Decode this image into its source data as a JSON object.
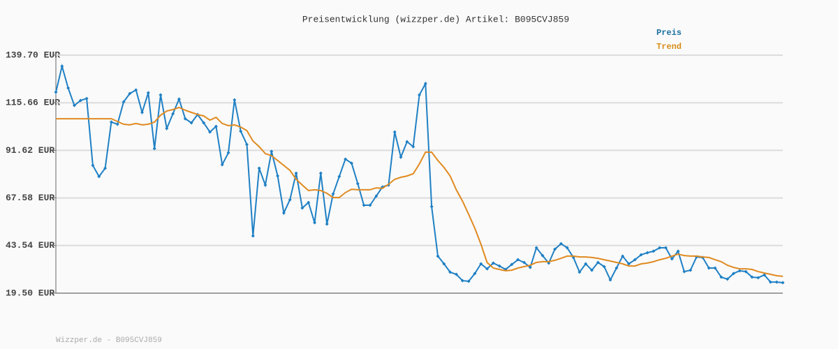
{
  "chart_data": {
    "type": "line",
    "title": "Preisentwicklung (wizzper.de) Artikel: B095CVJ859",
    "footer": "Wizzper.de - B095CVJ859",
    "ylim": [
      19.5,
      139.7
    ],
    "yticks": [
      {
        "value": 19.5,
        "label": "19.50 EUR"
      },
      {
        "value": 43.54,
        "label": "43.54 EUR"
      },
      {
        "value": 67.58,
        "label": "67.58 EUR"
      },
      {
        "value": 91.62,
        "label": "91.62 EUR"
      },
      {
        "value": 115.66,
        "label": "115.66 EUR"
      },
      {
        "value": 139.7,
        "label": "139.70 EUR"
      }
    ],
    "grid": true,
    "legend": "top-right",
    "series": [
      {
        "name": "Preis",
        "color": "#1f80c4",
        "legend_color": "#1a6e9e",
        "markers": true,
        "values": [
          121.0,
          134.1,
          123.1,
          114.3,
          116.8,
          117.8,
          84.0,
          78.4,
          82.6,
          105.9,
          104.8,
          116.1,
          120.3,
          122.1,
          110.8,
          120.7,
          92.5,
          119.6,
          102.7,
          110.1,
          117.5,
          107.6,
          105.5,
          109.7,
          105.5,
          100.9,
          103.7,
          84.4,
          90.4,
          117.1,
          101.3,
          94.6,
          48.4,
          82.6,
          74.1,
          91.1,
          78.7,
          60.0,
          66.7,
          80.1,
          62.5,
          65.3,
          55.1,
          80.1,
          54.4,
          69.6,
          78.4,
          87.2,
          85.1,
          74.8,
          63.9,
          63.9,
          68.5,
          73.1,
          74.1,
          100.9,
          88.2,
          96.0,
          93.5,
          119.6,
          125.3,
          63.2,
          38.2,
          34.3,
          30.1,
          29.0,
          25.8,
          25.5,
          29.4,
          34.3,
          31.8,
          34.7,
          33.2,
          31.5,
          34.0,
          36.4,
          35.0,
          32.5,
          42.4,
          38.5,
          34.7,
          41.7,
          44.5,
          42.4,
          37.5,
          30.1,
          34.3,
          31.1,
          35.0,
          32.9,
          26.2,
          32.2,
          38.2,
          34.3,
          36.4,
          38.9,
          39.9,
          40.7,
          42.4,
          42.4,
          36.8,
          40.7,
          30.4,
          31.1,
          37.8,
          37.5,
          32.2,
          32.2,
          27.6,
          26.6,
          29.4,
          30.8,
          30.4,
          27.6,
          27.3,
          28.7,
          25.1,
          25.1,
          24.8
        ]
      },
      {
        "name": "Trend",
        "color": "#e08a20",
        "legend_color": "#d98c1a",
        "markers": false,
        "values": [
          107.6,
          107.6,
          107.6,
          107.6,
          107.6,
          107.6,
          107.6,
          107.6,
          107.6,
          107.6,
          106.2,
          104.8,
          104.5,
          105.2,
          104.5,
          104.8,
          105.9,
          109.4,
          111.5,
          112.2,
          113.3,
          111.9,
          110.8,
          109.7,
          109.0,
          106.9,
          108.3,
          105.2,
          104.1,
          104.5,
          103.4,
          101.6,
          96.3,
          93.5,
          90.0,
          88.9,
          86.5,
          84.0,
          81.5,
          77.0,
          74.1,
          71.3,
          71.7,
          71.3,
          69.9,
          67.8,
          67.8,
          70.3,
          72.0,
          71.7,
          71.7,
          71.7,
          72.7,
          72.4,
          74.5,
          77.0,
          78.0,
          78.7,
          79.8,
          84.7,
          90.7,
          90.7,
          86.5,
          83.0,
          78.7,
          71.7,
          66.0,
          59.3,
          52.3,
          44.2,
          35.0,
          32.2,
          31.5,
          30.8,
          31.1,
          32.2,
          32.9,
          33.6,
          35.0,
          35.4,
          35.4,
          36.1,
          37.1,
          38.2,
          38.2,
          37.8,
          37.8,
          37.5,
          37.1,
          36.4,
          35.7,
          35.0,
          34.3,
          33.2,
          33.2,
          34.3,
          34.7,
          35.4,
          36.4,
          37.1,
          38.2,
          39.2,
          38.5,
          38.2,
          38.2,
          37.8,
          37.5,
          36.4,
          35.4,
          33.6,
          32.5,
          31.8,
          31.8,
          31.5,
          30.4,
          29.7,
          29.0,
          28.3,
          28.0
        ]
      }
    ]
  }
}
